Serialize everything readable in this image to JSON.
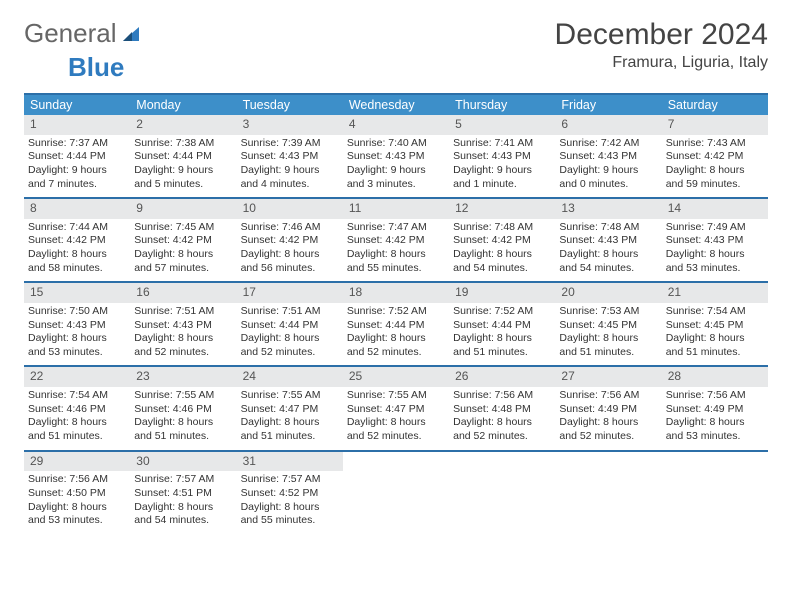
{
  "brand": {
    "word1": "General",
    "word2": "Blue"
  },
  "title": "December 2024",
  "location": "Framura, Liguria, Italy",
  "colors": {
    "header_bg": "#3d8fc9",
    "header_border": "#2c6fa8",
    "daynum_bg": "#e7e8e9",
    "text": "#333333",
    "brand_accent": "#2f7bbf"
  },
  "type": "table",
  "weekdays": [
    "Sunday",
    "Monday",
    "Tuesday",
    "Wednesday",
    "Thursday",
    "Friday",
    "Saturday"
  ],
  "weeks": [
    [
      {
        "day": "1",
        "sunrise": "Sunrise: 7:37 AM",
        "sunset": "Sunset: 4:44 PM",
        "daylight": "Daylight: 9 hours and 7 minutes."
      },
      {
        "day": "2",
        "sunrise": "Sunrise: 7:38 AM",
        "sunset": "Sunset: 4:44 PM",
        "daylight": "Daylight: 9 hours and 5 minutes."
      },
      {
        "day": "3",
        "sunrise": "Sunrise: 7:39 AM",
        "sunset": "Sunset: 4:43 PM",
        "daylight": "Daylight: 9 hours and 4 minutes."
      },
      {
        "day": "4",
        "sunrise": "Sunrise: 7:40 AM",
        "sunset": "Sunset: 4:43 PM",
        "daylight": "Daylight: 9 hours and 3 minutes."
      },
      {
        "day": "5",
        "sunrise": "Sunrise: 7:41 AM",
        "sunset": "Sunset: 4:43 PM",
        "daylight": "Daylight: 9 hours and 1 minute."
      },
      {
        "day": "6",
        "sunrise": "Sunrise: 7:42 AM",
        "sunset": "Sunset: 4:43 PM",
        "daylight": "Daylight: 9 hours and 0 minutes."
      },
      {
        "day": "7",
        "sunrise": "Sunrise: 7:43 AM",
        "sunset": "Sunset: 4:42 PM",
        "daylight": "Daylight: 8 hours and 59 minutes."
      }
    ],
    [
      {
        "day": "8",
        "sunrise": "Sunrise: 7:44 AM",
        "sunset": "Sunset: 4:42 PM",
        "daylight": "Daylight: 8 hours and 58 minutes."
      },
      {
        "day": "9",
        "sunrise": "Sunrise: 7:45 AM",
        "sunset": "Sunset: 4:42 PM",
        "daylight": "Daylight: 8 hours and 57 minutes."
      },
      {
        "day": "10",
        "sunrise": "Sunrise: 7:46 AM",
        "sunset": "Sunset: 4:42 PM",
        "daylight": "Daylight: 8 hours and 56 minutes."
      },
      {
        "day": "11",
        "sunrise": "Sunrise: 7:47 AM",
        "sunset": "Sunset: 4:42 PM",
        "daylight": "Daylight: 8 hours and 55 minutes."
      },
      {
        "day": "12",
        "sunrise": "Sunrise: 7:48 AM",
        "sunset": "Sunset: 4:42 PM",
        "daylight": "Daylight: 8 hours and 54 minutes."
      },
      {
        "day": "13",
        "sunrise": "Sunrise: 7:48 AM",
        "sunset": "Sunset: 4:43 PM",
        "daylight": "Daylight: 8 hours and 54 minutes."
      },
      {
        "day": "14",
        "sunrise": "Sunrise: 7:49 AM",
        "sunset": "Sunset: 4:43 PM",
        "daylight": "Daylight: 8 hours and 53 minutes."
      }
    ],
    [
      {
        "day": "15",
        "sunrise": "Sunrise: 7:50 AM",
        "sunset": "Sunset: 4:43 PM",
        "daylight": "Daylight: 8 hours and 53 minutes."
      },
      {
        "day": "16",
        "sunrise": "Sunrise: 7:51 AM",
        "sunset": "Sunset: 4:43 PM",
        "daylight": "Daylight: 8 hours and 52 minutes."
      },
      {
        "day": "17",
        "sunrise": "Sunrise: 7:51 AM",
        "sunset": "Sunset: 4:44 PM",
        "daylight": "Daylight: 8 hours and 52 minutes."
      },
      {
        "day": "18",
        "sunrise": "Sunrise: 7:52 AM",
        "sunset": "Sunset: 4:44 PM",
        "daylight": "Daylight: 8 hours and 52 minutes."
      },
      {
        "day": "19",
        "sunrise": "Sunrise: 7:52 AM",
        "sunset": "Sunset: 4:44 PM",
        "daylight": "Daylight: 8 hours and 51 minutes."
      },
      {
        "day": "20",
        "sunrise": "Sunrise: 7:53 AM",
        "sunset": "Sunset: 4:45 PM",
        "daylight": "Daylight: 8 hours and 51 minutes."
      },
      {
        "day": "21",
        "sunrise": "Sunrise: 7:54 AM",
        "sunset": "Sunset: 4:45 PM",
        "daylight": "Daylight: 8 hours and 51 minutes."
      }
    ],
    [
      {
        "day": "22",
        "sunrise": "Sunrise: 7:54 AM",
        "sunset": "Sunset: 4:46 PM",
        "daylight": "Daylight: 8 hours and 51 minutes."
      },
      {
        "day": "23",
        "sunrise": "Sunrise: 7:55 AM",
        "sunset": "Sunset: 4:46 PM",
        "daylight": "Daylight: 8 hours and 51 minutes."
      },
      {
        "day": "24",
        "sunrise": "Sunrise: 7:55 AM",
        "sunset": "Sunset: 4:47 PM",
        "daylight": "Daylight: 8 hours and 51 minutes."
      },
      {
        "day": "25",
        "sunrise": "Sunrise: 7:55 AM",
        "sunset": "Sunset: 4:47 PM",
        "daylight": "Daylight: 8 hours and 52 minutes."
      },
      {
        "day": "26",
        "sunrise": "Sunrise: 7:56 AM",
        "sunset": "Sunset: 4:48 PM",
        "daylight": "Daylight: 8 hours and 52 minutes."
      },
      {
        "day": "27",
        "sunrise": "Sunrise: 7:56 AM",
        "sunset": "Sunset: 4:49 PM",
        "daylight": "Daylight: 8 hours and 52 minutes."
      },
      {
        "day": "28",
        "sunrise": "Sunrise: 7:56 AM",
        "sunset": "Sunset: 4:49 PM",
        "daylight": "Daylight: 8 hours and 53 minutes."
      }
    ],
    [
      {
        "day": "29",
        "sunrise": "Sunrise: 7:56 AM",
        "sunset": "Sunset: 4:50 PM",
        "daylight": "Daylight: 8 hours and 53 minutes."
      },
      {
        "day": "30",
        "sunrise": "Sunrise: 7:57 AM",
        "sunset": "Sunset: 4:51 PM",
        "daylight": "Daylight: 8 hours and 54 minutes."
      },
      {
        "day": "31",
        "sunrise": "Sunrise: 7:57 AM",
        "sunset": "Sunset: 4:52 PM",
        "daylight": "Daylight: 8 hours and 55 minutes."
      },
      null,
      null,
      null,
      null
    ]
  ]
}
